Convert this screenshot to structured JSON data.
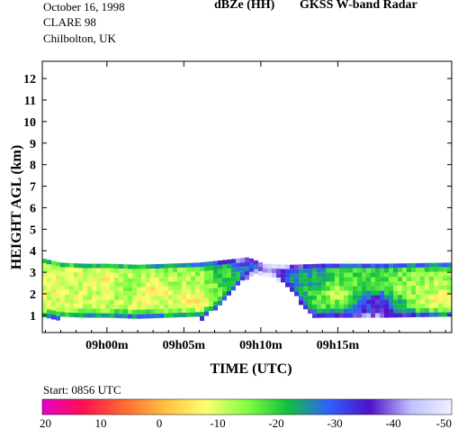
{
  "header": {
    "date": "October 16, 1998",
    "campaign": "CLARE 98",
    "site": "Chilbolton, UK",
    "product": "dBZe (HH)",
    "instrument": "GKSS  W-band Radar"
  },
  "footer": {
    "start_label": "Start: 0856 UTC"
  },
  "chart_data": {
    "type": "heatmap",
    "xlabel": "TIME (UTC)",
    "ylabel": "HEIGHT AGL (km)",
    "x_range_min": [
      -4.2,
      22.4
    ],
    "x_ticks": [
      {
        "label": "09h00m",
        "value": 0
      },
      {
        "label": "09h05m",
        "value": 5
      },
      {
        "label": "09h10m",
        "value": 10
      },
      {
        "label": "09h15m",
        "value": 15
      }
    ],
    "ylim": [
      0.2,
      12.8
    ],
    "y_ticks": [
      1,
      2,
      3,
      4,
      5,
      6,
      7,
      8,
      9,
      10,
      11,
      12
    ],
    "cloud_base_km": 0.95,
    "cloud_top_km": [
      [
        -4.2,
        3.65
      ],
      [
        -3.0,
        3.45
      ],
      [
        -1.5,
        3.4
      ],
      [
        0,
        3.4
      ],
      [
        2,
        3.35
      ],
      [
        4,
        3.4
      ],
      [
        6,
        3.45
      ],
      [
        8,
        3.6
      ],
      [
        9.2,
        3.7
      ],
      [
        10.2,
        3.4
      ],
      [
        12,
        3.35
      ],
      [
        14,
        3.4
      ],
      [
        18,
        3.4
      ],
      [
        22.4,
        3.45
      ]
    ],
    "clear_gap_top_km": [
      [
        6.2,
        0.95
      ],
      [
        7.2,
        1.5
      ],
      [
        8.2,
        2.2
      ],
      [
        9.0,
        2.8
      ],
      [
        10.0,
        3.0
      ],
      [
        11.0,
        2.8
      ],
      [
        12.0,
        2.2
      ],
      [
        12.8,
        1.5
      ],
      [
        13.5,
        0.95
      ]
    ],
    "echo_levels": [
      {
        "x": -3.5,
        "y": 2.6,
        "dbz": -8
      },
      {
        "x": -2.0,
        "y": 2.2,
        "dbz": -10
      },
      {
        "x": -0.5,
        "y": 2.7,
        "dbz": -7
      },
      {
        "x": 1.5,
        "y": 2.3,
        "dbz": -15
      },
      {
        "x": 3.0,
        "y": 2.1,
        "dbz": -5
      },
      {
        "x": 4.2,
        "y": 2.5,
        "dbz": -12
      },
      {
        "x": 5.5,
        "y": 1.8,
        "dbz": -5
      },
      {
        "x": 5.8,
        "y": 2.8,
        "dbz": -12
      },
      {
        "x": 7.5,
        "y": 2.8,
        "dbz": -20
      },
      {
        "x": 9.0,
        "y": 3.3,
        "dbz": -30
      },
      {
        "x": 11.0,
        "y": 3.2,
        "dbz": -35
      },
      {
        "x": 13.0,
        "y": 2.5,
        "dbz": -25
      },
      {
        "x": 15.0,
        "y": 2.0,
        "dbz": -10
      },
      {
        "x": 16.0,
        "y": 2.8,
        "dbz": -18
      },
      {
        "x": 17.5,
        "y": 1.6,
        "dbz": -38
      },
      {
        "x": 19.5,
        "y": 2.2,
        "dbz": -12
      },
      {
        "x": 21.5,
        "y": 1.8,
        "dbz": -8
      }
    ],
    "colorbar": {
      "range": [
        20,
        -50
      ],
      "tick_labels": [
        "20",
        "10",
        "0",
        "-10",
        "-20",
        "-30",
        "-40",
        "-50"
      ],
      "colors": [
        "#e600c8",
        "#ff1050",
        "#ff6a30",
        "#ffc040",
        "#ffff70",
        "#80ff40",
        "#10c040",
        "#3060ff",
        "#5010c8",
        "#c0c0ff",
        "#f0f0ff"
      ]
    }
  }
}
